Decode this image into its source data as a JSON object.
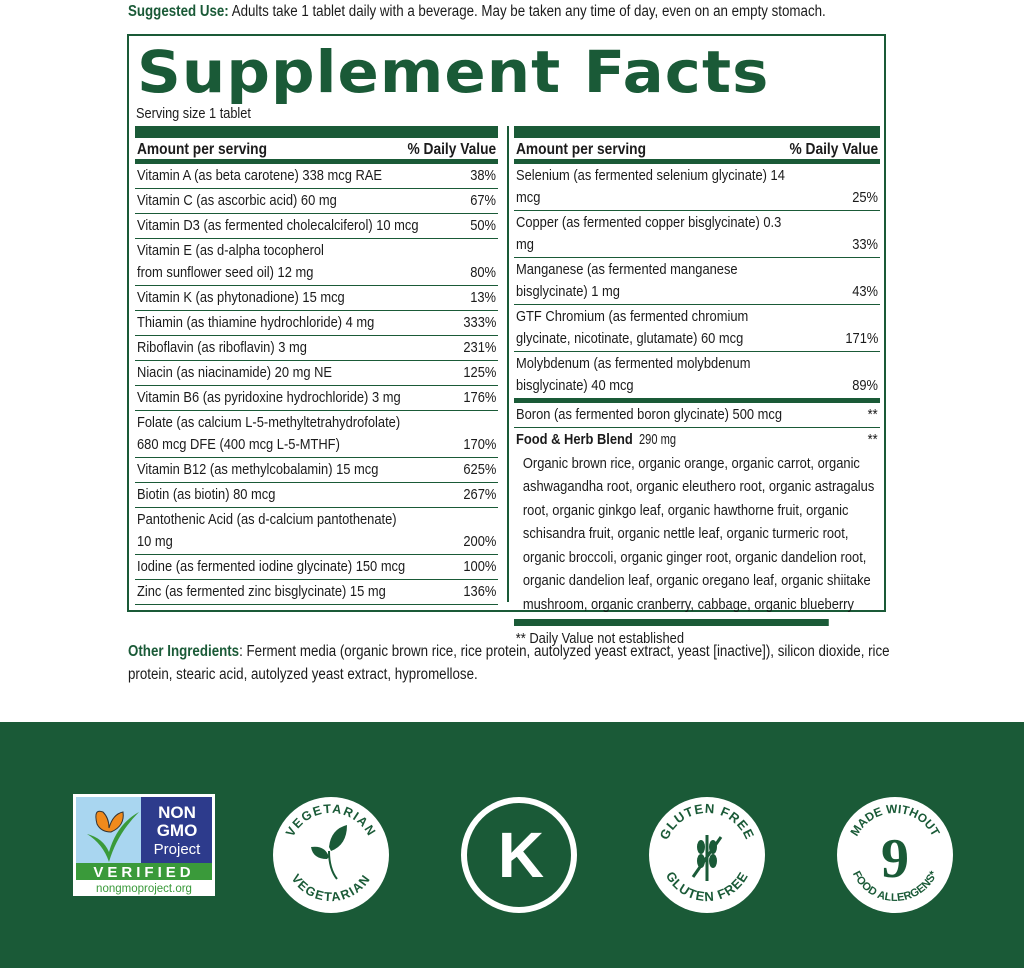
{
  "suggested_use": {
    "label": "Suggested Use:",
    "text": " Adults take 1 tablet daily with a beverage. May be taken any time of day, even on an empty stomach."
  },
  "title": "Supplement Facts",
  "serving": "Serving size 1 tablet",
  "header": {
    "amount": "Amount per serving",
    "dv": "% Daily Value"
  },
  "left": [
    {
      "n": "Vitamin A (as beta carotene) 338 mcg RAE",
      "v": "38%"
    },
    {
      "n": "Vitamin C (as ascorbic acid) 60 mg",
      "v": "67%"
    },
    {
      "n": "Vitamin D3 (as fermented cholecalciferol) 10 mcg",
      "v": "50%"
    },
    {
      "n": "Vitamin E (as d-alpha tocopherol\nfrom sunflower seed oil) 12 mg",
      "v": "80%"
    },
    {
      "n": "Vitamin K (as phytonadione) 15 mcg",
      "v": "13%"
    },
    {
      "n": "Thiamin (as thiamine hydrochloride) 4 mg",
      "v": "333%"
    },
    {
      "n": "Riboflavin (as riboflavin) 3 mg",
      "v": "231%"
    },
    {
      "n": "Niacin (as niacinamide) 20 mg NE",
      "v": "125%"
    },
    {
      "n": "Vitamin B6 (as pyridoxine hydrochloride) 3 mg",
      "v": "176%"
    },
    {
      "n": "Folate (as calcium L-5-methyltetrahydrofolate)\n680 mcg DFE (400 mcg L-5-MTHF)",
      "v": "170%"
    },
    {
      "n": "Vitamin B12 (as methylcobalamin) 15 mcg",
      "v": "625%"
    },
    {
      "n": "Biotin (as biotin) 80 mcg",
      "v": "267%"
    },
    {
      "n": "Pantothenic Acid (as d-calcium pantothenate) 10 mg",
      "v": "200%"
    },
    {
      "n": "Iodine (as fermented iodine glycinate) 150 mcg",
      "v": "100%"
    },
    {
      "n": "Zinc (as fermented zinc bisglycinate) 15 mg",
      "v": "136%"
    }
  ],
  "right": [
    {
      "n": "Selenium (as fermented selenium glycinate) 14 mcg",
      "v": "25%"
    },
    {
      "n": "Copper (as fermented copper bisglycinate) 0.3 mg",
      "v": "33%"
    },
    {
      "n": "Manganese (as fermented manganese bisglycinate) 1 mg",
      "v": "43%"
    },
    {
      "n": "GTF Chromium (as fermented chromium\nglycinate, nicotinate, glutamate) 60 mcg",
      "v": "171%"
    },
    {
      "n": "Molybdenum (as fermented molybdenum\nbisglycinate) 40 mcg",
      "v": "89%"
    },
    {
      "n": "Boron (as fermented boron glycinate) 500 mcg",
      "v": "**"
    }
  ],
  "blend": {
    "name": "Food & Herb Blend",
    "amount": " 290 mg",
    "dv": "**",
    "desc": "Organic brown rice, organic orange, organic carrot, organic\nashwagandha root, organic eleuthero root, organic astragalus\nroot, organic ginkgo leaf, organic hawthorne fruit, organic\nschisandra fruit, organic nettle leaf, organic turmeric root,\norganic broccoli, organic ginger root, organic dandelion root,\norganic dandelion leaf, organic oregano leaf, organic shiitake\nmushroom, organic cranberry, cabbage, organic blueberry"
  },
  "footnote": "** Daily Value not established",
  "other": {
    "label": "Other Ingredients",
    "text": ": Ferment media (organic brown rice, rice protein, autolyzed yeast extract, yeast [inactive]), silicon dioxide, rice protein, stearic acid, autolyzed yeast extract, hypromellose."
  },
  "badges": {
    "nongmo": {
      "line1": "NON",
      "line2": "GMO",
      "line3": "Project",
      "verified": "VERIFIED",
      "url": "nongmoproject.org"
    },
    "vegetarian": "VEGETARIAN",
    "kosher": "K",
    "gluten": "GLUTEN FREE",
    "allergen": {
      "top": "MADE WITHOUT",
      "num": "9",
      "bottom": "FOOD ALLERGENS*"
    }
  },
  "colors": {
    "brand_green": "#1a5a37"
  }
}
